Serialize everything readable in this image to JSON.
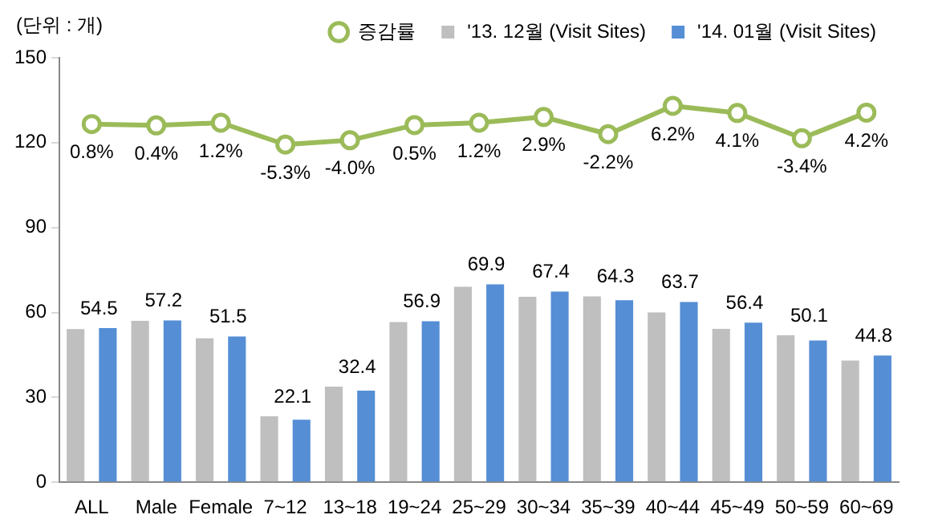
{
  "chart_data": {
    "type": "bar",
    "annotations": [
      "(단위 : 개)"
    ],
    "categories": [
      "ALL",
      "Male",
      "Female",
      "7~12",
      "13~18",
      "19~24",
      "25~29",
      "30~34",
      "35~39",
      "40~44",
      "45~49",
      "50~59",
      "60~69"
    ],
    "series": [
      {
        "name": "'13. 12월 (Visit Sites)",
        "color": "#bfbfbf",
        "values": [
          54.1,
          57.0,
          50.9,
          23.3,
          33.8,
          56.6,
          69.1,
          65.5,
          65.7,
          60.0,
          54.2,
          51.9,
          43.0
        ]
      },
      {
        "name": "'14. 01월 (Visit Sites)",
        "color": "#558ed5",
        "values": [
          54.5,
          57.2,
          51.5,
          22.1,
          32.4,
          56.9,
          69.9,
          67.4,
          64.3,
          63.7,
          56.4,
          50.1,
          44.8
        ],
        "value_labels": [
          "54.5",
          "57.2",
          "51.5",
          "22.1",
          "32.4",
          "56.9",
          "69.9",
          "67.4",
          "64.3",
          "63.7",
          "56.4",
          "50.1",
          "44.8"
        ]
      },
      {
        "name": "증감률",
        "type": "line",
        "axis": "y2",
        "color": "#9bbb59",
        "marker": "circle",
        "values": [
          0.8,
          0.4,
          1.2,
          -5.3,
          -4.0,
          0.5,
          1.2,
          2.9,
          -2.2,
          6.2,
          4.1,
          -3.4,
          4.2
        ],
        "value_labels": [
          "0.8%",
          "0.4%",
          "1.2%",
          "-5.3%",
          "-4.0%",
          "0.5%",
          "1.2%",
          "2.9%",
          "-2.2%",
          "6.2%",
          "4.1%",
          "-3.4%",
          "4.2%"
        ]
      }
    ],
    "ylim": [
      0,
      150
    ],
    "yticks": [
      0,
      30,
      60,
      90,
      120,
      150
    ],
    "y2lim": [
      -105.6,
      20.5
    ],
    "grid": false,
    "legend": "top right"
  }
}
